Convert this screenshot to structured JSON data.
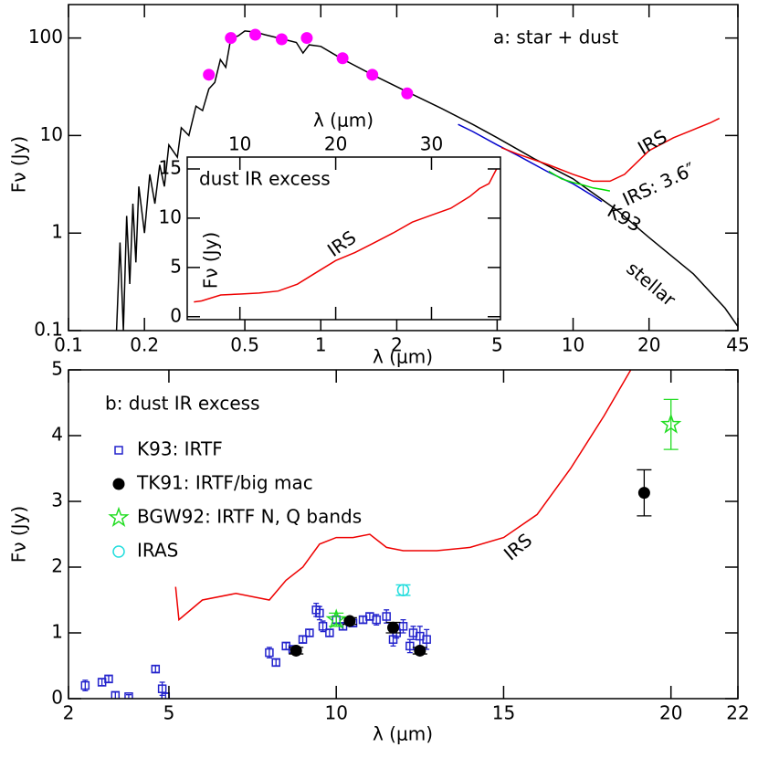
{
  "chart_data": [
    {
      "type": "line",
      "title": "a: star + dust",
      "xlabel": "λ (μm)",
      "ylabel": "Fν (Jy)",
      "xscale": "log",
      "yscale": "log",
      "xlim": [
        0.1,
        45
      ],
      "ylim": [
        0.1,
        220
      ],
      "xticks": [
        0.1,
        0.2,
        0.5,
        1,
        2,
        5,
        10,
        20,
        45
      ],
      "yticks": [
        0.1,
        1,
        10,
        100
      ],
      "series": [
        {
          "name": "stellar",
          "color": "#000000",
          "mode": "line",
          "x": [
            0.155,
            0.16,
            0.165,
            0.17,
            0.175,
            0.18,
            0.185,
            0.19,
            0.2,
            0.21,
            0.22,
            0.23,
            0.24,
            0.25,
            0.27,
            0.28,
            0.3,
            0.32,
            0.34,
            0.36,
            0.38,
            0.4,
            0.42,
            0.44,
            0.47,
            0.5,
            0.55,
            0.6,
            0.7,
            0.8,
            0.85,
            0.9,
            1.0,
            1.2,
            1.6,
            2.2,
            3,
            4,
            5,
            7,
            10,
            15,
            20,
            30,
            40,
            45
          ],
          "values": [
            0.1,
            0.8,
            0.1,
            1.5,
            0.3,
            2,
            0.5,
            3,
            1,
            4,
            2,
            5,
            3,
            8,
            6,
            12,
            10,
            20,
            18,
            30,
            35,
            60,
            50,
            100,
            105,
            118,
            115,
            108,
            98,
            90,
            70,
            85,
            82,
            62,
            42,
            28,
            19,
            13,
            9.5,
            5.8,
            3.6,
            1.7,
            0.9,
            0.38,
            0.17,
            0.11
          ]
        },
        {
          "name": "K93",
          "color": "#0000cc",
          "mode": "line",
          "x": [
            3.5,
            4,
            5,
            6,
            8,
            10,
            12,
            13
          ],
          "values": [
            13,
            11,
            8,
            6.3,
            4.2,
            3.2,
            2.4,
            2.1
          ]
        },
        {
          "name": "IRS: 3.6″",
          "color": "#00dd00",
          "mode": "line",
          "x": [
            8,
            9,
            10,
            11,
            12,
            13,
            14
          ],
          "values": [
            4.3,
            3.6,
            3.3,
            3.1,
            2.9,
            2.8,
            2.7
          ]
        },
        {
          "name": "IRS",
          "color": "#ee0000",
          "mode": "line",
          "x": [
            5.2,
            6,
            8,
            10,
            12,
            14,
            16,
            20,
            25,
            30,
            35,
            38
          ],
          "values": [
            7.5,
            6.5,
            5,
            4,
            3.4,
            3.4,
            4,
            7,
            9.5,
            11.5,
            13.5,
            15
          ]
        },
        {
          "color": "#ff00ff",
          "mode": "marker",
          "marker": "circle-filled",
          "x": [
            0.36,
            0.44,
            0.55,
            0.7,
            0.88,
            1.22,
            1.6,
            2.2
          ],
          "values": [
            42,
            100,
            108,
            97,
            100,
            62,
            42,
            27
          ]
        }
      ]
    },
    {
      "type": "line",
      "title": "dust IR excess",
      "xlabel": "λ (μm)",
      "ylabel": "Fν (Jy)",
      "xlim": [
        4.5,
        37.2
      ],
      "ylim": [
        -0.3,
        16.2
      ],
      "xticks": [
        10,
        20,
        30
      ],
      "yticks": [
        0,
        5,
        10,
        15
      ],
      "series": [
        {
          "name": "IRS",
          "color": "#ee0000",
          "mode": "line",
          "x": [
            5.2,
            6,
            8,
            10,
            12,
            14,
            16,
            18,
            20,
            22,
            24,
            26,
            28,
            30,
            32,
            34,
            35,
            36,
            36.8
          ],
          "values": [
            1.5,
            1.6,
            2.2,
            2.3,
            2.4,
            2.6,
            3.3,
            4.5,
            5.7,
            6.5,
            7.5,
            8.5,
            9.6,
            10.3,
            11,
            12.2,
            13,
            13.5,
            15
          ]
        }
      ]
    },
    {
      "type": "scatter",
      "title": "b: dust IR excess",
      "xlabel": "λ (μm)",
      "ylabel": "Fν (Jy)",
      "xlim": [
        2,
        22
      ],
      "ylim": [
        0,
        5
      ],
      "xticks": [
        2,
        5,
        10,
        15,
        20,
        22
      ],
      "yticks": [
        0,
        1,
        2,
        3,
        4,
        5
      ],
      "series": [
        {
          "name": "IRS",
          "color": "#ee0000",
          "mode": "line",
          "x": [
            5.2,
            5.3,
            6,
            7,
            8,
            8.5,
            9,
            9.5,
            10,
            10.5,
            11,
            11.5,
            12,
            12.5,
            13,
            14,
            15,
            16,
            17,
            18,
            18.8
          ],
          "values": [
            1.7,
            1.2,
            1.5,
            1.6,
            1.5,
            1.8,
            2.0,
            2.35,
            2.45,
            2.45,
            2.5,
            2.3,
            2.25,
            2.25,
            2.25,
            2.3,
            2.45,
            2.8,
            3.5,
            4.3,
            5.0
          ]
        },
        {
          "name": "K93: IRTF",
          "color": "#2222cc",
          "mode": "marker",
          "marker": "square",
          "x": [
            2.5,
            3.0,
            3.2,
            3.4,
            3.8,
            4.6,
            4.8,
            4.9,
            8.0,
            8.2,
            8.5,
            8.7,
            9.0,
            9.2,
            9.4,
            9.5,
            9.6,
            9.8,
            10.0,
            10.2,
            10.5,
            10.8,
            11.0,
            11.2,
            11.5,
            11.7,
            11.8,
            12.0,
            12.2,
            12.3,
            12.5,
            12.7
          ],
          "values": [
            0.2,
            0.25,
            0.3,
            0.05,
            0.03,
            0.45,
            0.15,
            0.03,
            0.7,
            0.55,
            0.8,
            0.75,
            0.9,
            1.0,
            1.35,
            1.3,
            1.1,
            1.0,
            1.2,
            1.1,
            1.15,
            1.2,
            1.25,
            1.2,
            1.25,
            0.9,
            1.0,
            1.1,
            0.8,
            1.0,
            0.95,
            0.9
          ],
          "errors": [
            0.08,
            0.05,
            0.05,
            0.05,
            0.03,
            0.05,
            0.1,
            0.05,
            0.08,
            0.05,
            0.05,
            0.05,
            0.05,
            0.05,
            0.1,
            0.1,
            0.08,
            0.05,
            0.05,
            0.05,
            0.05,
            0.05,
            0.05,
            0.08,
            0.1,
            0.1,
            0.08,
            0.1,
            0.1,
            0.1,
            0.15,
            0.15
          ]
        },
        {
          "name": "TK91: IRTF/big mac",
          "color": "#000000",
          "mode": "marker",
          "marker": "circle-filled",
          "x": [
            8.8,
            10.4,
            11.7,
            12.5,
            19.2
          ],
          "values": [
            0.73,
            1.18,
            1.08,
            0.73,
            3.13
          ],
          "errors": [
            0.05,
            0.05,
            0.08,
            0.05,
            0.35
          ]
        },
        {
          "name": "BGW92: IRTF N, Q bands",
          "color": "#22dd22",
          "mode": "marker",
          "marker": "star",
          "x": [
            10,
            20
          ],
          "values": [
            1.2,
            4.17
          ],
          "errors": [
            0.1,
            0.38
          ]
        },
        {
          "name": "IRAS",
          "color": "#22dddd",
          "mode": "marker",
          "marker": "circle",
          "x": [
            12
          ],
          "values": [
            1.65
          ],
          "errors": [
            0.08
          ]
        }
      ]
    }
  ]
}
